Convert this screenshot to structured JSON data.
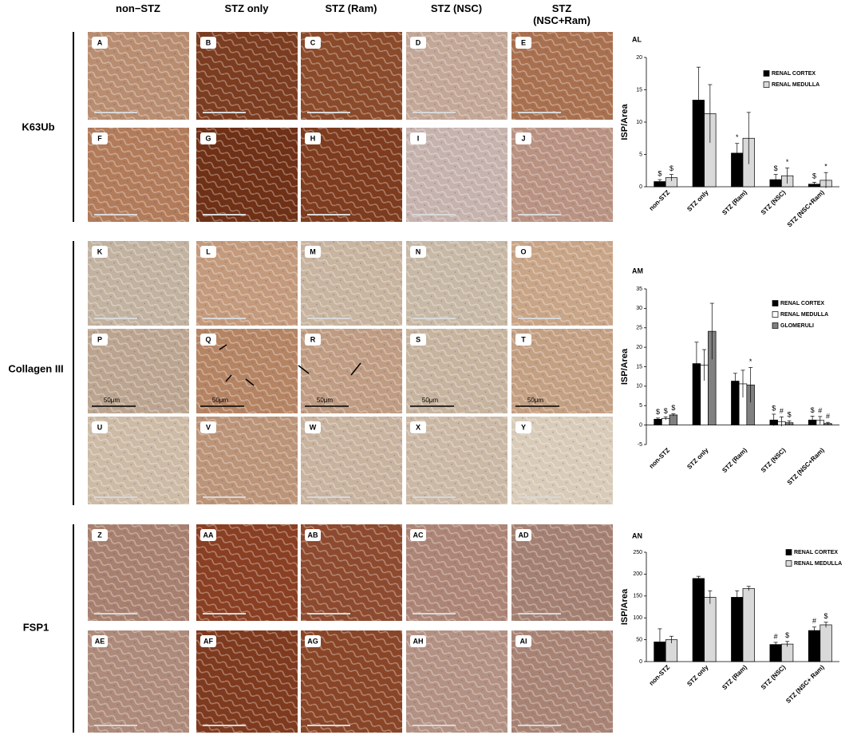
{
  "column_headers": [
    "non−STZ",
    "STZ only",
    "STZ (Ram)",
    "STZ (NSC)",
    "STZ (NSC+Ram)"
  ],
  "row_labels": [
    "K63Ub",
    "Collagen III",
    "FSP1"
  ],
  "panels": [
    "A",
    "B",
    "C",
    "D",
    "E",
    "F",
    "G",
    "H",
    "I",
    "J",
    "K",
    "L",
    "M",
    "N",
    "O",
    "P",
    "Q",
    "R",
    "S",
    "T",
    "U",
    "V",
    "W",
    "X",
    "Y",
    "Z",
    "AA",
    "AB",
    "AC",
    "AD",
    "AE",
    "AF",
    "AG",
    "AH",
    "AI"
  ],
  "scale_label": "50μm",
  "chart_data": [
    {
      "type": "bar",
      "panel_label": "AL",
      "y_label": "ISP/Area",
      "categories": [
        "non-STZ",
        "STZ only",
        "STZ (Ram)",
        "STZ (NSC)",
        "STZ (NSC+Ram)"
      ],
      "ylim": [
        0,
        20
      ],
      "yticks": [
        0,
        5,
        10,
        15,
        20
      ],
      "series": [
        {
          "name": "RENAL CORTEX",
          "color": "#000000",
          "values": [
            0.8,
            13.4,
            5.2,
            1.1,
            0.4
          ],
          "errors": [
            0.3,
            5.1,
            1.5,
            0.8,
            0.3
          ],
          "markers": [
            "$",
            null,
            "*",
            "$",
            "$"
          ]
        },
        {
          "name": "RENAL MEDULLA",
          "color": "#d9d9d9",
          "values": [
            1.4,
            11.3,
            7.5,
            1.7,
            1.0
          ],
          "errors": [
            0.5,
            4.5,
            4.0,
            1.2,
            1.2
          ],
          "markers": [
            "$",
            null,
            null,
            "*",
            "*"
          ]
        }
      ]
    },
    {
      "type": "bar",
      "panel_label": "AM",
      "y_label": "ISP/Area",
      "categories": [
        "non-STZ",
        "STZ only",
        "STZ (Ram)",
        "STZ (NSC)",
        "STZ (NSC+Ram)"
      ],
      "ylim": [
        -5,
        35
      ],
      "yticks": [
        -5,
        0,
        5,
        10,
        15,
        20,
        25,
        30,
        35
      ],
      "series": [
        {
          "name": "RENAL CORTEX",
          "color": "#000000",
          "values": [
            1.5,
            15.8,
            11.3,
            1.3,
            1.3
          ],
          "errors": [
            0.3,
            5.5,
            2.0,
            1.5,
            1.0
          ],
          "markers": [
            "$",
            null,
            null,
            "$",
            "$"
          ]
        },
        {
          "name": "RENAL MEDULLA",
          "color": "#ffffff",
          "values": [
            1.7,
            15.4,
            10.6,
            0.9,
            1.2
          ],
          "errors": [
            0.4,
            4.0,
            3.5,
            1.2,
            1.0
          ],
          "markers": [
            "$",
            null,
            null,
            "#",
            "#"
          ]
        },
        {
          "name": "GLOMERULI",
          "color": "#808080",
          "values": [
            2.6,
            24.1,
            10.3,
            0.6,
            0.4
          ],
          "errors": [
            0.3,
            7.2,
            4.5,
            0.5,
            0.3
          ],
          "markers": [
            "$",
            null,
            "*",
            "$",
            "#"
          ]
        }
      ]
    },
    {
      "type": "bar",
      "panel_label": "AN",
      "y_label": "ISP/Area",
      "categories": [
        "non-STZ",
        "STZ only",
        "STZ (Ram)",
        "STZ (NSC)",
        "STZ (NSC+ Ram)"
      ],
      "ylim": [
        0,
        250
      ],
      "yticks": [
        0,
        50,
        100,
        150,
        200,
        250
      ],
      "series": [
        {
          "name": "RENAL CORTEX",
          "color": "#000000",
          "values": [
            45,
            190,
            147,
            39,
            71
          ],
          "errors": [
            30,
            5,
            15,
            5,
            8
          ],
          "markers": [
            null,
            null,
            null,
            "#",
            "#"
          ]
        },
        {
          "name": "RENAL MEDULLA",
          "color": "#d9d9d9",
          "values": [
            50,
            147,
            167,
            40,
            84
          ],
          "errors": [
            8,
            15,
            5,
            6,
            6
          ],
          "markers": [
            null,
            null,
            null,
            "$",
            "$"
          ]
        }
      ]
    }
  ]
}
